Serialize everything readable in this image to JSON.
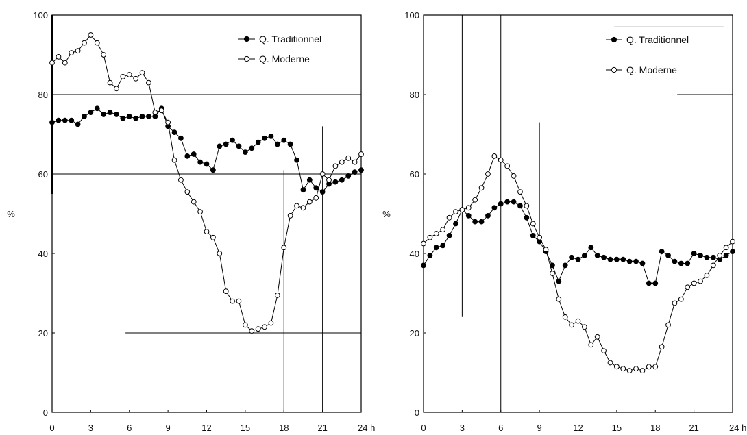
{
  "chart_data": [
    {
      "type": "line",
      "title": "",
      "xlabel": "",
      "ylabel": "%",
      "xlim": [
        0,
        24
      ],
      "ylim": [
        0,
        100
      ],
      "x_ticks": [
        "0",
        "3",
        "6",
        "9",
        "12",
        "15",
        "18",
        "21",
        "24 h"
      ],
      "y_ticks": [
        "0",
        "20",
        "40",
        "60",
        "80",
        "100"
      ],
      "legend_position": "top-right",
      "series": [
        {
          "name": "Q. Traditionnel",
          "marker": "filled-circle",
          "x": [
            0,
            0.5,
            1,
            1.5,
            2,
            2.5,
            3,
            3.5,
            4,
            4.5,
            5,
            5.5,
            6,
            6.5,
            7,
            7.5,
            8,
            8.5,
            9,
            9.5,
            10,
            10.5,
            11,
            11.5,
            12,
            12.5,
            13,
            13.5,
            14,
            14.5,
            15,
            15.5,
            16,
            16.5,
            17,
            17.5,
            18,
            18.5,
            19,
            19.5,
            20,
            20.5,
            21,
            21.5,
            22,
            22.5,
            23,
            23.5,
            24
          ],
          "y": [
            73,
            73.5,
            73.5,
            73.5,
            72.5,
            74.5,
            75.5,
            76.5,
            75,
            75.5,
            75,
            74,
            74.5,
            74,
            74.5,
            74.5,
            74.5,
            76.5,
            72,
            70.5,
            69,
            64.5,
            65,
            63,
            62.5,
            61,
            67,
            67.5,
            68.5,
            67,
            65.5,
            66.5,
            68,
            69,
            69.5,
            67.5,
            68.5,
            67.5,
            63.5,
            56,
            58.5,
            56.5,
            55.5,
            57.5,
            58,
            58.5,
            59.5,
            60.5,
            61
          ]
        },
        {
          "name": "Q. Moderne",
          "marker": "open-circle",
          "x": [
            0,
            0.5,
            1,
            1.5,
            2,
            2.5,
            3,
            3.5,
            4,
            4.5,
            5,
            5.5,
            6,
            6.5,
            7,
            7.5,
            8,
            8.5,
            9,
            9.5,
            10,
            10.5,
            11,
            11.5,
            12,
            12.5,
            13,
            13.5,
            14,
            14.5,
            15,
            15.5,
            16,
            16.5,
            17,
            17.5,
            18,
            18.5,
            19,
            19.5,
            20,
            20.5,
            21,
            21.5,
            22,
            22.5,
            23,
            23.5,
            24
          ],
          "y": [
            88,
            89.5,
            88,
            90.5,
            91,
            93,
            95,
            93,
            90,
            83,
            81.5,
            84.5,
            85,
            84,
            85.5,
            83,
            75.5,
            76,
            73,
            63.5,
            58.5,
            55.5,
            53,
            50.5,
            45.5,
            44,
            40,
            30.5,
            28,
            28,
            22,
            20.5,
            21,
            21.5,
            22.5,
            29.5,
            41.5,
            49.5,
            52,
            51.5,
            53,
            54,
            60,
            58.5,
            62,
            63,
            64,
            63,
            65
          ]
        }
      ],
      "reference_lines": [
        {
          "orientation": "horizontal",
          "y": 80,
          "x_from": 0,
          "x_to": 24
        },
        {
          "orientation": "horizontal",
          "y": 60,
          "x_from": 0,
          "x_to": 24
        },
        {
          "orientation": "horizontal",
          "y": 20,
          "x_from": 5.7,
          "x_to": 24
        },
        {
          "orientation": "vertical",
          "x": 18,
          "y_from": 0,
          "y_to": 61
        },
        {
          "orientation": "vertical",
          "x": 21,
          "y_from": 0,
          "y_to": 72
        }
      ]
    },
    {
      "type": "line",
      "title": "",
      "xlabel": "",
      "ylabel": "%",
      "xlim": [
        0,
        24
      ],
      "ylim": [
        0,
        100
      ],
      "x_ticks": [
        "0",
        "3",
        "6",
        "9",
        "12",
        "15",
        "18",
        "21",
        "24 h"
      ],
      "y_ticks": [
        "0",
        "20",
        "40",
        "60",
        "80",
        "100"
      ],
      "legend_position": "top-right",
      "series": [
        {
          "name": "Q. Traditionnel",
          "marker": "filled-circle",
          "x": [
            0,
            0.5,
            1,
            1.5,
            2,
            2.5,
            3,
            3.5,
            4,
            4.5,
            5,
            5.5,
            6,
            6.5,
            7,
            7.5,
            8,
            8.5,
            9,
            9.5,
            10,
            10.5,
            11,
            11.5,
            12,
            12.5,
            13,
            13.5,
            14,
            14.5,
            15,
            15.5,
            16,
            16.5,
            17,
            17.5,
            18,
            18.5,
            19,
            19.5,
            20,
            20.5,
            21,
            21.5,
            22,
            22.5,
            23,
            23.5,
            24
          ],
          "y": [
            37,
            39.5,
            41.5,
            42,
            44.5,
            47.5,
            51,
            49.5,
            48,
            48,
            49.5,
            51.5,
            52.5,
            53,
            53,
            52,
            49,
            44.5,
            43,
            40.5,
            37,
            33,
            37,
            39,
            38.5,
            39.5,
            41.5,
            39.5,
            39,
            38.5,
            38.5,
            38.5,
            38,
            38,
            37.5,
            32.5,
            32.5,
            40.5,
            39.5,
            38,
            37.5,
            37.5,
            40,
            39.5,
            39,
            39,
            38.5,
            39.5,
            40.5
          ]
        },
        {
          "name": "Q. Moderne",
          "marker": "open-circle",
          "x": [
            0,
            0.5,
            1,
            1.5,
            2,
            2.5,
            3,
            3.5,
            4,
            4.5,
            5,
            5.5,
            6,
            6.5,
            7,
            7.5,
            8,
            8.5,
            9,
            9.5,
            10,
            10.5,
            11,
            11.5,
            12,
            12.5,
            13,
            13.5,
            14,
            14.5,
            15,
            15.5,
            16,
            16.5,
            17,
            17.5,
            18,
            18.5,
            19,
            19.5,
            20,
            20.5,
            21,
            21.5,
            22,
            22.5,
            23,
            23.5,
            24
          ],
          "y": [
            42.5,
            44,
            45,
            46,
            49,
            50.5,
            51,
            51.5,
            53.5,
            56.5,
            60,
            64.5,
            63.5,
            62,
            59.5,
            55.5,
            52,
            47.5,
            44,
            41,
            35,
            28.5,
            24,
            22,
            23,
            21.5,
            17,
            19,
            15.5,
            12.5,
            11.5,
            11,
            10.5,
            11,
            10.5,
            11.5,
            11.5,
            16.5,
            22,
            27.5,
            28.5,
            31.5,
            32.5,
            33,
            34.5,
            37,
            39.5,
            41.5,
            43
          ]
        }
      ],
      "reference_lines": [
        {
          "orientation": "vertical",
          "x": 3,
          "y_from": 24,
          "y_to": 100
        },
        {
          "orientation": "vertical",
          "x": 6,
          "y_from": 0,
          "y_to": 100
        },
        {
          "orientation": "vertical",
          "x": 9,
          "y_from": 44,
          "y_to": 73
        },
        {
          "orientation": "horizontal",
          "y": 97,
          "x_from": 14.8,
          "x_to": 23.3
        },
        {
          "orientation": "horizontal",
          "y": 80,
          "x_from": 19.7,
          "x_to": 24
        }
      ]
    }
  ]
}
